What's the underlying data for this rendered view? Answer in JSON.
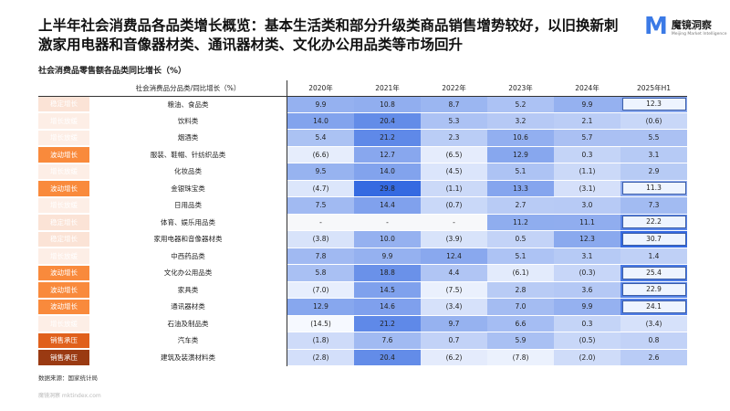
{
  "header": {
    "title": "上半年社会消费品各品类增长概览：基本生活类和部分升级类商品销售增势较好，以旧换新刺激家用电器和音像器材类、通讯器材类、文化办公用品类等市场回升",
    "logo_name": "魔镜洞察",
    "logo_sub": "Meijing Market Intelligence"
  },
  "subtitle": "社会消费品零售额各品类同比增长（%）",
  "table": {
    "columns": [
      "社会消费品分品类/同比增长（%）",
      "2020年",
      "2021年",
      "2022年",
      "2023年",
      "2024年",
      "2025年H1"
    ],
    "rows": [
      {
        "tag": "稳定增长",
        "tag_color": "#fbe3d6",
        "category": "粮油、食品类",
        "values": [
          "9.9",
          "10.8",
          "8.7",
          "5.2",
          "9.9",
          "12.3"
        ],
        "boxed": true
      },
      {
        "tag": "增长放缓",
        "tag_color": "#fdeee6",
        "category": "饮料类",
        "values": [
          "14.0",
          "20.4",
          "5.3",
          "3.2",
          "2.1",
          "(0.6)"
        ],
        "boxed": false
      },
      {
        "tag": "增长放缓",
        "tag_color": "#fdeee6",
        "category": "烟酒类",
        "values": [
          "5.4",
          "21.2",
          "2.3",
          "10.6",
          "5.7",
          "5.5"
        ],
        "boxed": false
      },
      {
        "tag": "波动增长",
        "tag_color": "#f98a3c",
        "category": "服装、鞋帽、针纺织品类",
        "values": [
          "(6.6)",
          "12.7",
          "(6.5)",
          "12.9",
          "0.3",
          "3.1"
        ],
        "boxed": false
      },
      {
        "tag": "增长放缓",
        "tag_color": "#fdeee6",
        "category": "化妆品类",
        "values": [
          "9.5",
          "14.0",
          "(4.5)",
          "5.1",
          "(1.1)",
          "2.9"
        ],
        "boxed": false
      },
      {
        "tag": "波动增长",
        "tag_color": "#f98a3c",
        "category": "金银珠宝类",
        "values": [
          "(4.7)",
          "29.8",
          "(1.1)",
          "13.3",
          "(3.1)",
          "11.3"
        ],
        "boxed": true
      },
      {
        "tag": "增长放缓",
        "tag_color": "#fdeee6",
        "category": "日用品类",
        "values": [
          "7.5",
          "14.4",
          "(0.7)",
          "2.7",
          "3.0",
          "7.3"
        ],
        "boxed": false
      },
      {
        "tag": "稳定增长",
        "tag_color": "#fbe3d6",
        "category": "体育、娱乐用品类",
        "values": [
          "-",
          "-",
          "-",
          "11.2",
          "11.1",
          "22.2"
        ],
        "boxed": true
      },
      {
        "tag": "稳定增长",
        "tag_color": "#fbe3d6",
        "category": "家用电器和音像器材类",
        "values": [
          "(3.8)",
          "10.0",
          "(3.9)",
          "0.5",
          "12.3",
          "30.7"
        ],
        "boxed": true
      },
      {
        "tag": "增长放缓",
        "tag_color": "#fdeee6",
        "category": "中西药品类",
        "values": [
          "7.8",
          "9.9",
          "12.4",
          "5.1",
          "3.1",
          "1.4"
        ],
        "boxed": false
      },
      {
        "tag": "波动增长",
        "tag_color": "#f98a3c",
        "category": "文化办公用品类",
        "values": [
          "5.8",
          "18.8",
          "4.4",
          "(6.1)",
          "(0.3)",
          "25.4"
        ],
        "boxed": true
      },
      {
        "tag": "波动增长",
        "tag_color": "#f98a3c",
        "category": "家具类",
        "values": [
          "(7.0)",
          "14.5",
          "(7.5)",
          "2.8",
          "3.6",
          "22.9"
        ],
        "boxed": true
      },
      {
        "tag": "波动增长",
        "tag_color": "#f98a3c",
        "category": "通讯器材类",
        "values": [
          "12.9",
          "14.6",
          "(3.4)",
          "7.0",
          "9.9",
          "24.1"
        ],
        "boxed": true
      },
      {
        "tag": "增长放缓",
        "tag_color": "#fdeee6",
        "category": "石油及制品类",
        "values": [
          "(14.5)",
          "21.2",
          "9.7",
          "6.6",
          "0.3",
          "(3.4)"
        ],
        "boxed": false
      },
      {
        "tag": "销售承压",
        "tag_color": "#e0601c",
        "category": "汽车类",
        "values": [
          "(1.8)",
          "7.6",
          "0.7",
          "5.9",
          "(0.5)",
          "0.8"
        ],
        "boxed": false
      },
      {
        "tag": "销售承压",
        "tag_color": "#9a3a12",
        "category": "建筑及装潢材料类",
        "values": [
          "(2.8)",
          "20.4",
          "(6.2)",
          "(7.8)",
          "(2.0)",
          "2.6"
        ],
        "boxed": false
      }
    ]
  },
  "footer": {
    "source": "数据来源：国家统计局",
    "watermark": "魔镜洞察 mktindex.com"
  }
}
